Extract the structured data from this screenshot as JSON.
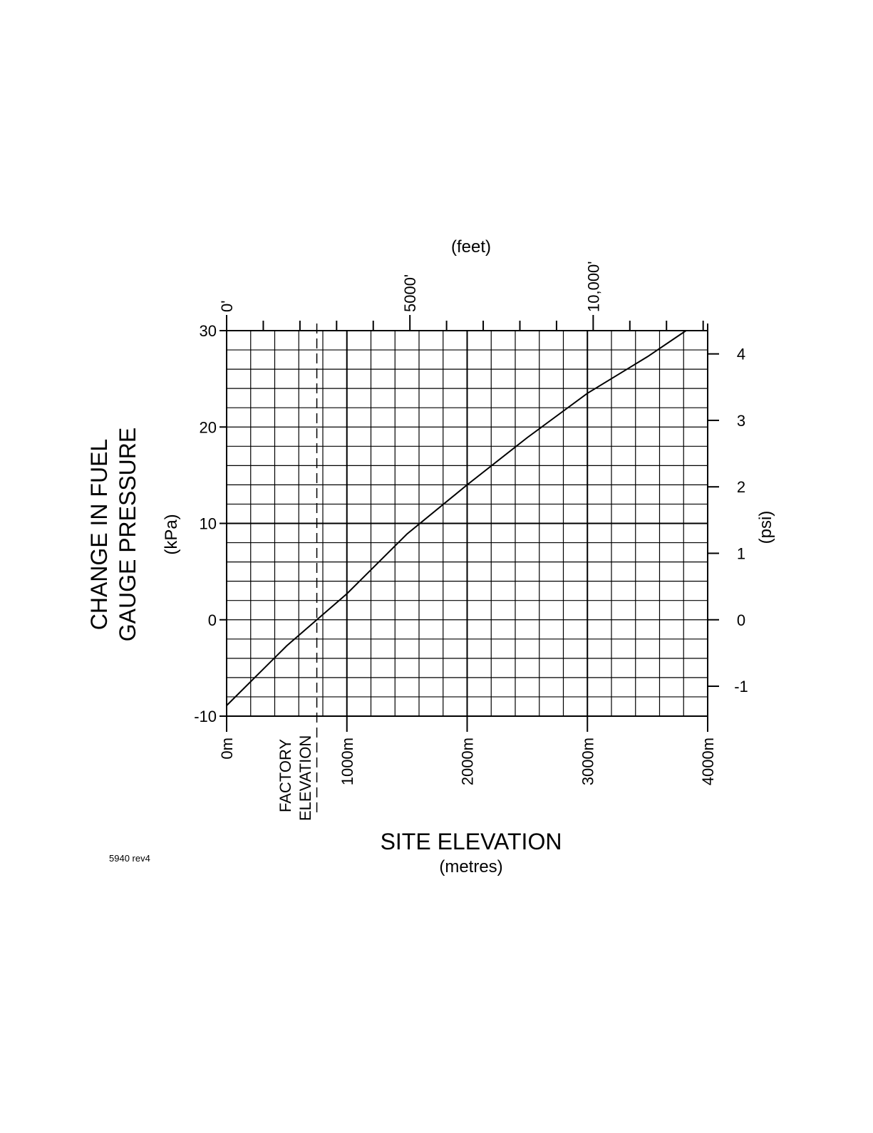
{
  "chart_data": {
    "type": "line",
    "y_label_lines": [
      "CHANGE IN FUEL",
      "GAUGE PRESSURE"
    ],
    "y_unit": "(kPa)",
    "y2_unit": "(psi)",
    "x2_unit": "(feet)",
    "x_label": "SITE ELEVATION",
    "x_unit": "(metres)",
    "footnote": "5940 rev4",
    "annotation_lines": [
      "FACTORY",
      "ELEVATION"
    ],
    "factory_elevation": 750,
    "x": [
      0,
      500,
      1000,
      1500,
      2000,
      2500,
      3000,
      3500,
      3820
    ],
    "series": [
      {
        "color": "#000000",
        "values": [
          -8.9,
          -2.7,
          2.7,
          8.9,
          14,
          18.9,
          23.5,
          27.3,
          30
        ]
      }
    ],
    "xlim": [
      0,
      4000
    ],
    "xticks": [
      {
        "value": 0,
        "label": "0m"
      },
      {
        "value": 1000,
        "label": "1000m"
      },
      {
        "value": 2000,
        "label": "2000m"
      },
      {
        "value": 3000,
        "label": "3000m"
      },
      {
        "value": 4000,
        "label": "4000m"
      }
    ],
    "xgrid": [
      200,
      400,
      600,
      800,
      1000,
      1200,
      1400,
      1600,
      1800,
      2000,
      2200,
      2400,
      2600,
      2800,
      3000,
      3200,
      3400,
      3600,
      3800
    ],
    "ylim": [
      -10,
      30
    ],
    "yticks": [
      -10,
      0,
      10,
      20,
      30
    ],
    "ygrid": [
      -8,
      -6,
      -4,
      -2,
      0,
      2,
      4,
      6,
      8,
      10,
      12,
      14,
      16,
      18,
      20,
      22,
      24,
      26,
      28
    ],
    "y2lim": [
      -1.45,
      4.35
    ],
    "y2ticks": [
      -1,
      0,
      1,
      2,
      3,
      4
    ],
    "x2lim": [
      0,
      13123
    ],
    "x2ticks": [
      {
        "value": 0,
        "label": "0'"
      },
      {
        "value": 5000,
        "label": "5000'"
      },
      {
        "value": 10000,
        "label": "10,000'"
      }
    ],
    "x2minor_ticks": [
      1000,
      2000,
      3000,
      4000,
      6000,
      7000,
      8000,
      9000,
      11000,
      12000,
      13000
    ],
    "major_grid_x": [
      1000,
      2000,
      3000
    ],
    "major_grid_y": [
      10
    ],
    "grid": true
  }
}
